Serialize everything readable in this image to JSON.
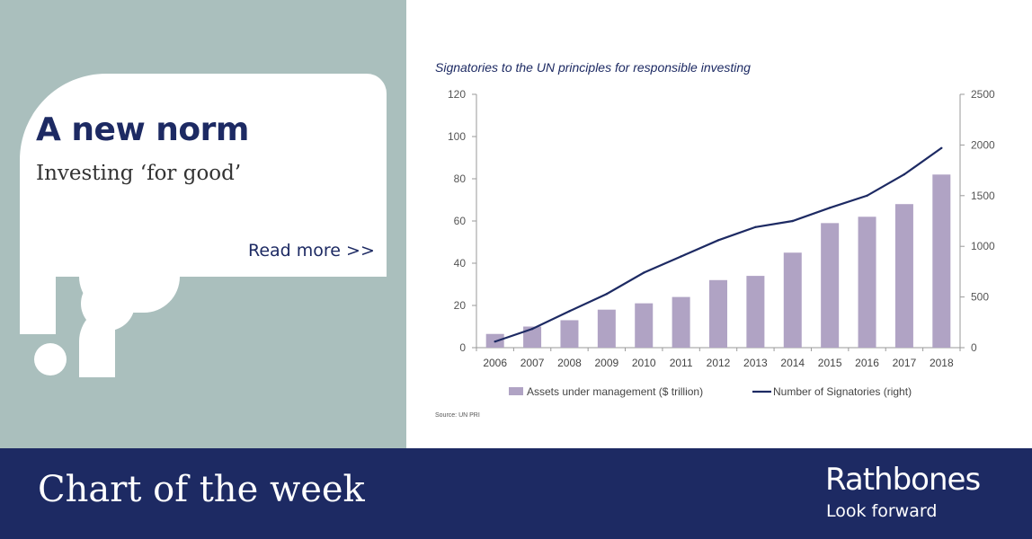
{
  "card": {
    "headline": "A new norm",
    "subhead": "Investing ‘for good’",
    "read_more": "Read more >>"
  },
  "footer": {
    "title": "Chart of the week",
    "brand": "Rathbones",
    "tagline": "Look forward"
  },
  "colors": {
    "panel": "#aabfbd",
    "navy": "#1d2a63",
    "bar": "#b0a3c4"
  },
  "chart_data": {
    "type": "bar",
    "title": "Signatories to the UN principles for responsible investing",
    "source": "Source: UN PRI",
    "categories": [
      "2006",
      "2007",
      "2008",
      "2009",
      "2010",
      "2011",
      "2012",
      "2013",
      "2014",
      "2015",
      "2016",
      "2017",
      "2018"
    ],
    "series": [
      {
        "name": "Assets under management ($ trillion)",
        "type": "bar",
        "axis": "left",
        "values": [
          6.5,
          10,
          13,
          18,
          21,
          24,
          32,
          34,
          45,
          59,
          62,
          68,
          82
        ]
      },
      {
        "name": "Number of Signatories (right)",
        "type": "line",
        "axis": "right",
        "values": [
          60,
          185,
          360,
          530,
          740,
          900,
          1060,
          1190,
          1250,
          1380,
          1500,
          1710,
          1970
        ]
      }
    ],
    "ylim_left": [
      0,
      120
    ],
    "yticks_left": [
      0,
      20,
      40,
      60,
      80,
      100,
      120
    ],
    "ylim_right": [
      0,
      2500
    ],
    "yticks_right": [
      0,
      500,
      1000,
      1500,
      2000,
      2500
    ],
    "grid": false,
    "legend": "bottom"
  }
}
